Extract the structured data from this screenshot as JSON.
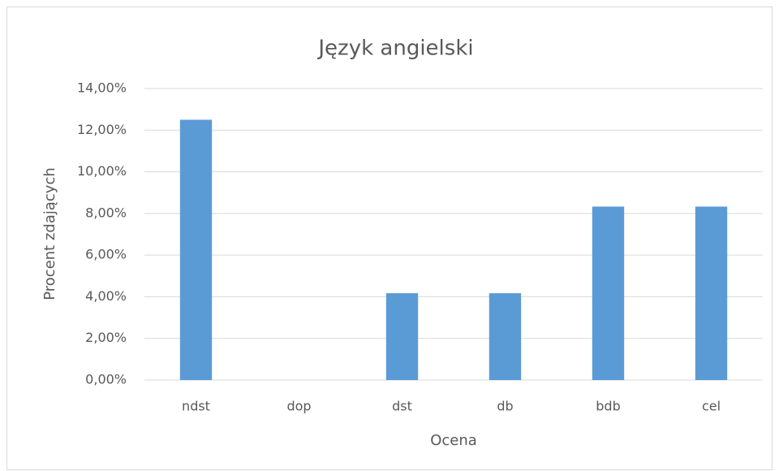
{
  "chart_data": {
    "type": "bar",
    "title": "Język angielski",
    "x_label": "Ocena",
    "y_label": "Procent zdających",
    "categories": [
      "ndst",
      "dop",
      "dst",
      "db",
      "bdb",
      "cel"
    ],
    "values": [
      12.5,
      0,
      4.17,
      4.17,
      8.33,
      8.33
    ],
    "color": "#5b9bd5",
    "ylim": [
      0,
      14
    ],
    "yticks": [
      {
        "value": 0,
        "label": "0,00%"
      },
      {
        "value": 2,
        "label": "2,00%"
      },
      {
        "value": 4,
        "label": "4,00%"
      },
      {
        "value": 6,
        "label": "6,00%"
      },
      {
        "value": 8,
        "label": "8,00%"
      },
      {
        "value": 10,
        "label": "10,00%"
      },
      {
        "value": 12,
        "label": "12,00%"
      },
      {
        "value": 14,
        "label": "14,00%"
      }
    ],
    "grid": true
  }
}
